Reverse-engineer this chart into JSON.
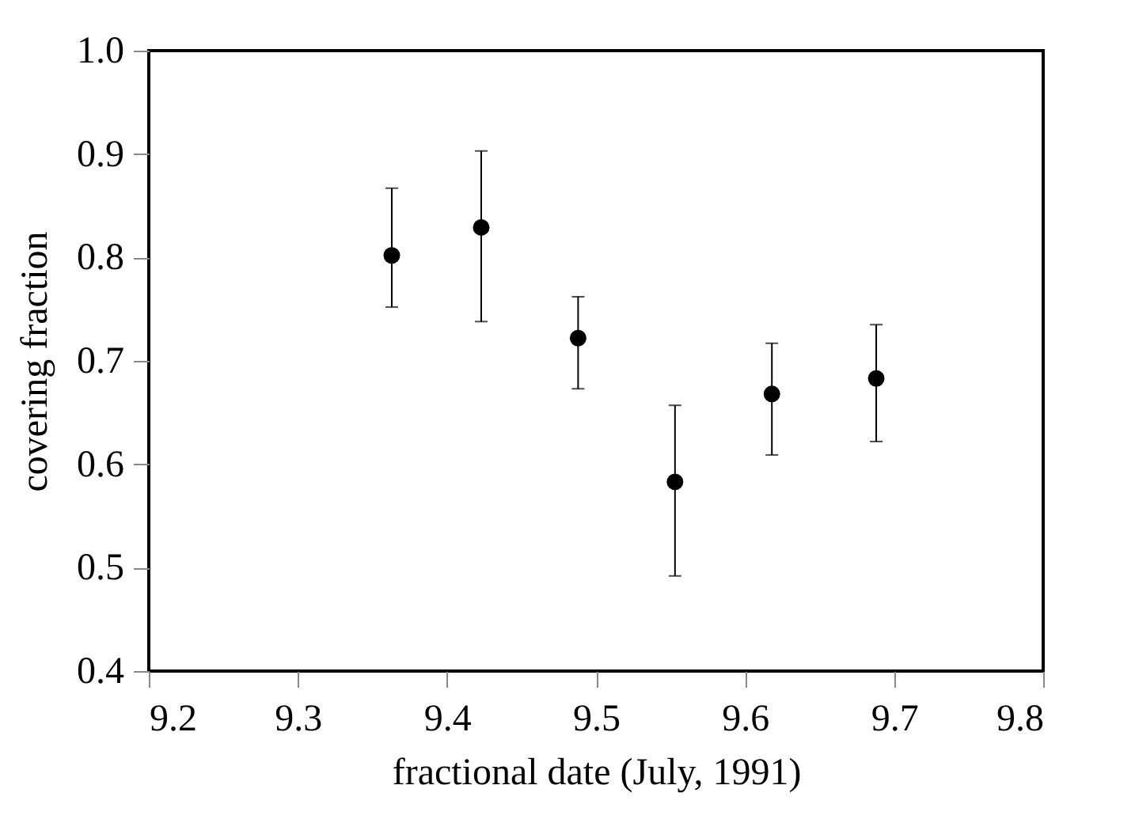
{
  "chart_data": {
    "type": "scatter",
    "xlabel": "fractional date (July, 1991)",
    "ylabel": "covering fraction",
    "x": [
      9.363,
      9.423,
      9.488,
      9.553,
      9.618,
      9.688
    ],
    "values": [
      0.802,
      0.829,
      0.722,
      0.583,
      0.668,
      0.683
    ],
    "errors": [
      [
        0.752,
        0.867
      ],
      [
        0.738,
        0.903
      ],
      [
        0.673,
        0.762
      ],
      [
        0.492,
        0.657
      ],
      [
        0.609,
        0.717
      ],
      [
        0.622,
        0.735
      ]
    ],
    "color": "#000000",
    "marker": "circle",
    "grid": false,
    "xlim": [
      9.2,
      9.8
    ],
    "ylim": [
      0.4,
      1.0
    ],
    "xticks": [
      9.2,
      9.3,
      9.4,
      9.5,
      9.6,
      9.7,
      9.8
    ],
    "yticks": [
      0.4,
      0.5,
      0.6,
      0.7,
      0.8,
      0.9,
      {
        "value": 1.0,
        "label": "1.0"
      }
    ]
  }
}
